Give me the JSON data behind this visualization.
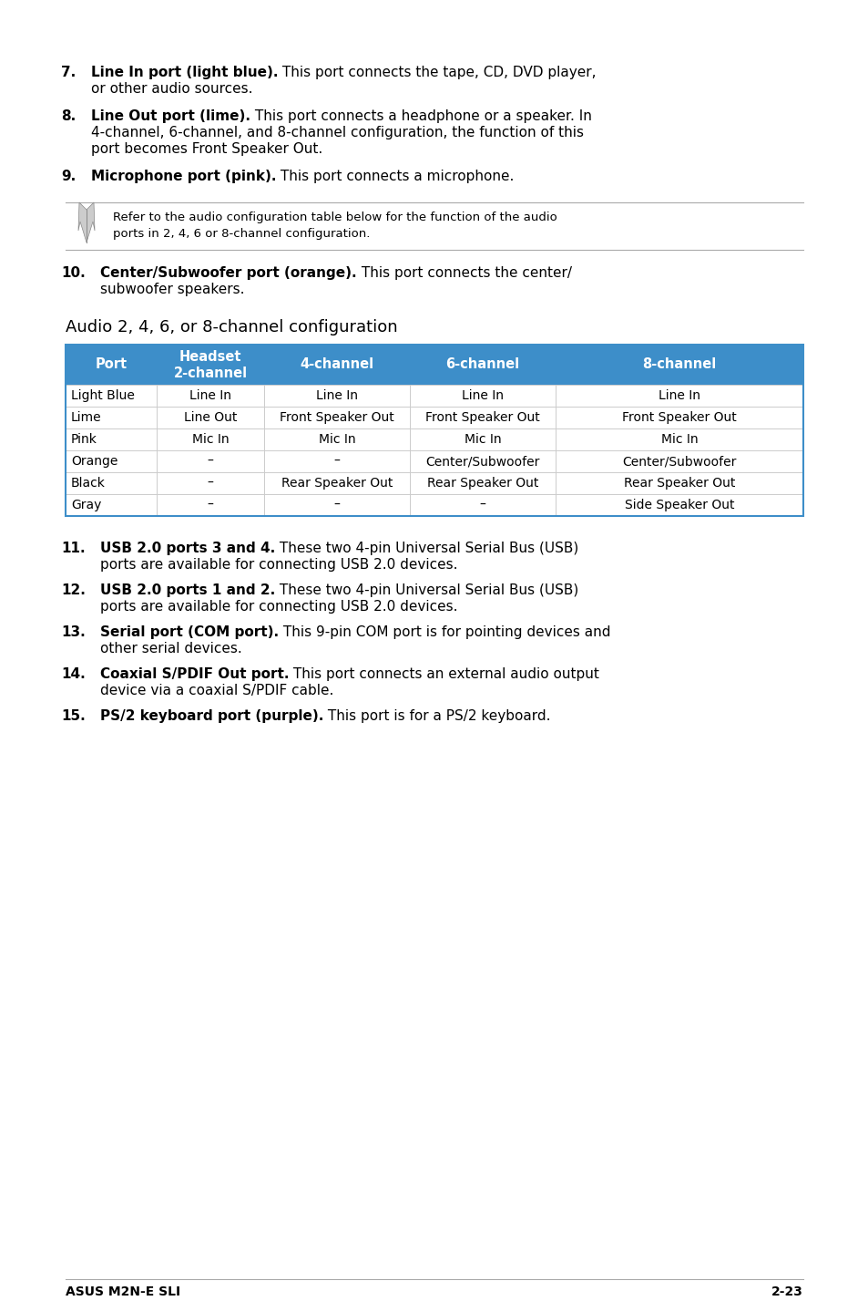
{
  "bg_color": "#ffffff",
  "text_color": "#000000",
  "header_bg": "#3d8ec9",
  "header_text": "#ffffff",
  "table_border": "#3d8ec9",
  "row_divider": "#cccccc",
  "note_line_color": "#aaaaaa",
  "footer_line_color": "#aaaaaa",
  "items_top": [
    {
      "num": "7.",
      "bold_text": "Line In port (light blue).",
      "normal_text": " This port connects the tape, CD, DVD player,\nor other audio sources."
    },
    {
      "num": "8.",
      "bold_text": "Line Out port (lime).",
      "normal_text": " This port connects a headphone or a speaker. In\n4-channel, 6-channel, and 8-channel configuration, the function of this\nport becomes Front Speaker Out."
    },
    {
      "num": "9.",
      "bold_text": "Microphone port (pink).",
      "normal_text": " This port connects a microphone."
    }
  ],
  "note_text_line1": "Refer to the audio configuration table below for the function of the audio",
  "note_text_line2": "ports in 2, 4, 6 or 8-channel configuration.",
  "item10_num": "10.",
  "item10_bold": "Center/Subwoofer port (orange).",
  "item10_normal_line1": " This port connects the center/",
  "item10_normal_line2": "subwoofer speakers.",
  "table_title": "Audio 2, 4, 6, or 8-channel configuration",
  "col_headers": [
    "Port",
    "Headset\n2-channel",
    "4-channel",
    "6-channel",
    "8-channel"
  ],
  "table_rows": [
    [
      "Light Blue",
      "Line In",
      "Line In",
      "Line In",
      "Line In"
    ],
    [
      "Lime",
      "Line Out",
      "Front Speaker Out",
      "Front Speaker Out",
      "Front Speaker Out"
    ],
    [
      "Pink",
      "Mic In",
      "Mic In",
      "Mic In",
      "Mic In"
    ],
    [
      "Orange",
      "–",
      "–",
      "Center/Subwoofer",
      "Center/Subwoofer"
    ],
    [
      "Black",
      "–",
      "Rear Speaker Out",
      "Rear Speaker Out",
      "Rear Speaker Out"
    ],
    [
      "Gray",
      "–",
      "–",
      "–",
      "Side Speaker Out"
    ]
  ],
  "items_lower": [
    {
      "num": "11.",
      "bold_text": "USB 2.0 ports 3 and 4.",
      "normal_text": " These two 4-pin Universal Serial Bus (USB)\nports are available for connecting USB 2.0 devices."
    },
    {
      "num": "12.",
      "bold_text": "USB 2.0 ports 1 and 2.",
      "normal_text": " These two 4-pin Universal Serial Bus (USB)\nports are available for connecting USB 2.0 devices."
    },
    {
      "num": "13.",
      "bold_text": "Serial port (COM port).",
      "normal_text": " This 9-pin COM port is for pointing devices and\nother serial devices."
    },
    {
      "num": "14.",
      "bold_text": "Coaxial S/PDIF Out port.",
      "normal_text": " This port connects an external audio output\ndevice via a coaxial S/PDIF cable."
    },
    {
      "num": "15.",
      "bold_text": "PS/2 keyboard port (purple).",
      "normal_text": " This port is for a PS/2 keyboard."
    }
  ],
  "footer_left": "ASUS M2N-E SLI",
  "footer_right": "2-23"
}
